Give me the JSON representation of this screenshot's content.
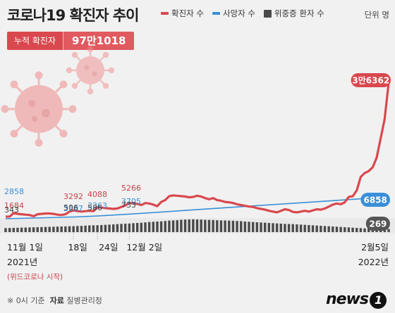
{
  "title": "코로나19 확진자 추이",
  "legend": [
    {
      "label": "확진자 수",
      "color": "#d9484e",
      "shape": "line"
    },
    {
      "label": "사망자 수",
      "color": "#3a8fd8",
      "shape": "line"
    },
    {
      "label": "위중증 환자 수",
      "color": "#4a4a4a",
      "shape": "box"
    }
  ],
  "unit": "단위 명",
  "total": {
    "label": "누적 확진자",
    "value": "97만1018"
  },
  "chart_data": {
    "type": "line",
    "title": "코로나19 확진자 추이",
    "x_ticks": [
      {
        "label": "11월 1일",
        "sub": "2021년",
        "note": "(위드코로나 시작)",
        "index": 0
      },
      {
        "label": "18일",
        "index": 17
      },
      {
        "label": "24일",
        "index": 23
      },
      {
        "label": "12월 2일",
        "index": 31
      },
      {
        "label": "2월5일",
        "sub": "2022년",
        "index": 96
      }
    ],
    "series": [
      {
        "name": "확진자 수",
        "color": "#d9484e",
        "values": [
          1684,
          1700,
          2600,
          2400,
          2300,
          2200,
          2100,
          1800,
          2300,
          2400,
          2500,
          2500,
          2400,
          2200,
          2100,
          2300,
          3000,
          3292,
          3100,
          3000,
          3100,
          3200,
          3100,
          4088,
          4050,
          3900,
          3800,
          3700,
          3800,
          4200,
          4600,
          5266,
          5100,
          5000,
          4700,
          5200,
          5100,
          4800,
          4400,
          5500,
          6000,
          7000,
          7200,
          7100,
          7000,
          6900,
          6700,
          6800,
          7100,
          6900,
          6500,
          6200,
          6500,
          6000,
          5800,
          5500,
          5400,
          5200,
          4900,
          4700,
          4500,
          4300,
          4200,
          3900,
          3700,
          3500,
          3200,
          3000,
          2800,
          3200,
          3600,
          3400,
          2900,
          2800,
          3000,
          3200,
          3000,
          3300,
          3600,
          3500,
          3800,
          4300,
          4800,
          5100,
          4900,
          5400,
          6800,
          7000,
          8500,
          12000,
          13000,
          13500,
          14500,
          17000,
          22000,
          27000,
          36362
        ],
        "labels": [
          {
            "index": 0,
            "text": "1684"
          },
          {
            "index": 17,
            "text": "3292"
          },
          {
            "index": 23,
            "text": "4088"
          },
          {
            "index": 31,
            "text": "5266"
          },
          {
            "index": 96,
            "text": "3만6362"
          }
        ]
      },
      {
        "name": "사망자 수",
        "color": "#3a8fd8",
        "values": [
          2858,
          3187,
          3363,
          3705,
          6858
        ],
        "x_index": [
          0,
          17,
          23,
          31,
          96
        ],
        "labels": [
          {
            "index": 0,
            "text": "2858"
          },
          {
            "index": 17,
            "text": "3187"
          },
          {
            "index": 23,
            "text": "3363"
          },
          {
            "index": 31,
            "text": "3705"
          },
          {
            "index": 96,
            "text": "6858"
          }
        ]
      },
      {
        "name": "위중증 환자 수",
        "color": "#4a4a4a",
        "type": "bar",
        "values": [
          343,
          350,
          360,
          370,
          380,
          390,
          400,
          410,
          420,
          430,
          440,
          450,
          460,
          470,
          480,
          490,
          500,
          506,
          520,
          530,
          550,
          570,
          580,
          586,
          600,
          620,
          640,
          660,
          680,
          700,
          720,
          733,
          760,
          780,
          800,
          830,
          860,
          880,
          900,
          920,
          950,
          980,
          1000,
          1020,
          1050,
          1070,
          1080,
          1090,
          1080,
          1070,
          1050,
          1040,
          1030,
          1010,
          1000,
          990,
          980,
          970,
          950,
          930,
          900,
          880,
          860,
          840,
          820,
          800,
          780,
          760,
          740,
          720,
          700,
          690,
          680,
          660,
          640,
          620,
          600,
          580,
          560,
          540,
          520,
          500,
          480,
          460,
          440,
          420,
          400,
          380,
          360,
          340,
          320,
          300,
          290,
          280,
          275,
          272,
          269
        ],
        "labels": [
          {
            "index": 0,
            "text": "343"
          },
          {
            "index": 17,
            "text": "506"
          },
          {
            "index": 23,
            "text": "586"
          },
          {
            "index": 31,
            "text": "733"
          },
          {
            "index": 96,
            "text": "269"
          }
        ]
      }
    ]
  },
  "footer": {
    "note": "※ 0시 기준",
    "source_label": "자료",
    "source": "질병관리청"
  },
  "logo": {
    "text": "news",
    "mark": "1"
  }
}
